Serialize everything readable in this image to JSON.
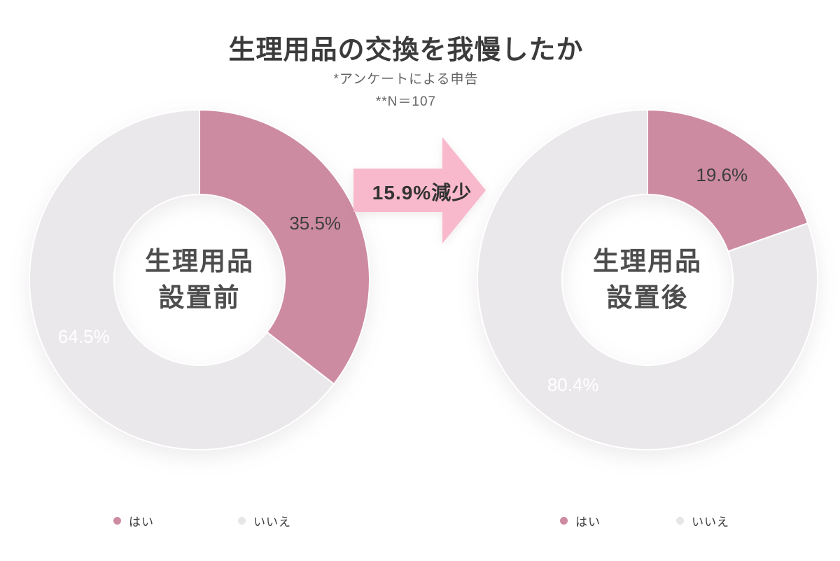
{
  "header": {
    "title": "生理用品の交換を我慢したか",
    "note1": "*アンケートによる申告",
    "note2": "**N＝107"
  },
  "colors": {
    "yes": "#cd8ba1",
    "no": "#ebe8ec",
    "arrow": "#f9b9cd",
    "label_dark": "#3d3d3d",
    "label_light": "#ffffff",
    "legend_no_dot": "#e8e5e9"
  },
  "arrow": {
    "label": "15.9%減少"
  },
  "chart_data": [
    {
      "type": "pie",
      "title": "生理用品設置前",
      "center_label_lines": [
        "生理用品",
        "設置前"
      ],
      "start_angle_deg": 0,
      "direction": "clockwise",
      "slices": [
        {
          "name": "はい",
          "value": 35.5,
          "label": "35.5%",
          "color": "yes",
          "label_color": "label_dark"
        },
        {
          "name": "いいえ",
          "value": 64.5,
          "label": "64.5%",
          "color": "no",
          "label_color": "label_light"
        }
      ],
      "legend": [
        "はい",
        "いいえ"
      ],
      "legend_position": "bottom"
    },
    {
      "type": "pie",
      "title": "生理用品設置後",
      "center_label_lines": [
        "生理用品",
        "設置後"
      ],
      "start_angle_deg": 0,
      "direction": "clockwise",
      "slices": [
        {
          "name": "はい",
          "value": 19.6,
          "label": "19.6%",
          "color": "yes",
          "label_color": "label_dark"
        },
        {
          "name": "いいえ",
          "value": 80.4,
          "label": "80.4%",
          "color": "no",
          "label_color": "label_light"
        }
      ],
      "legend": [
        "はい",
        "いいえ"
      ],
      "legend_position": "bottom"
    }
  ]
}
